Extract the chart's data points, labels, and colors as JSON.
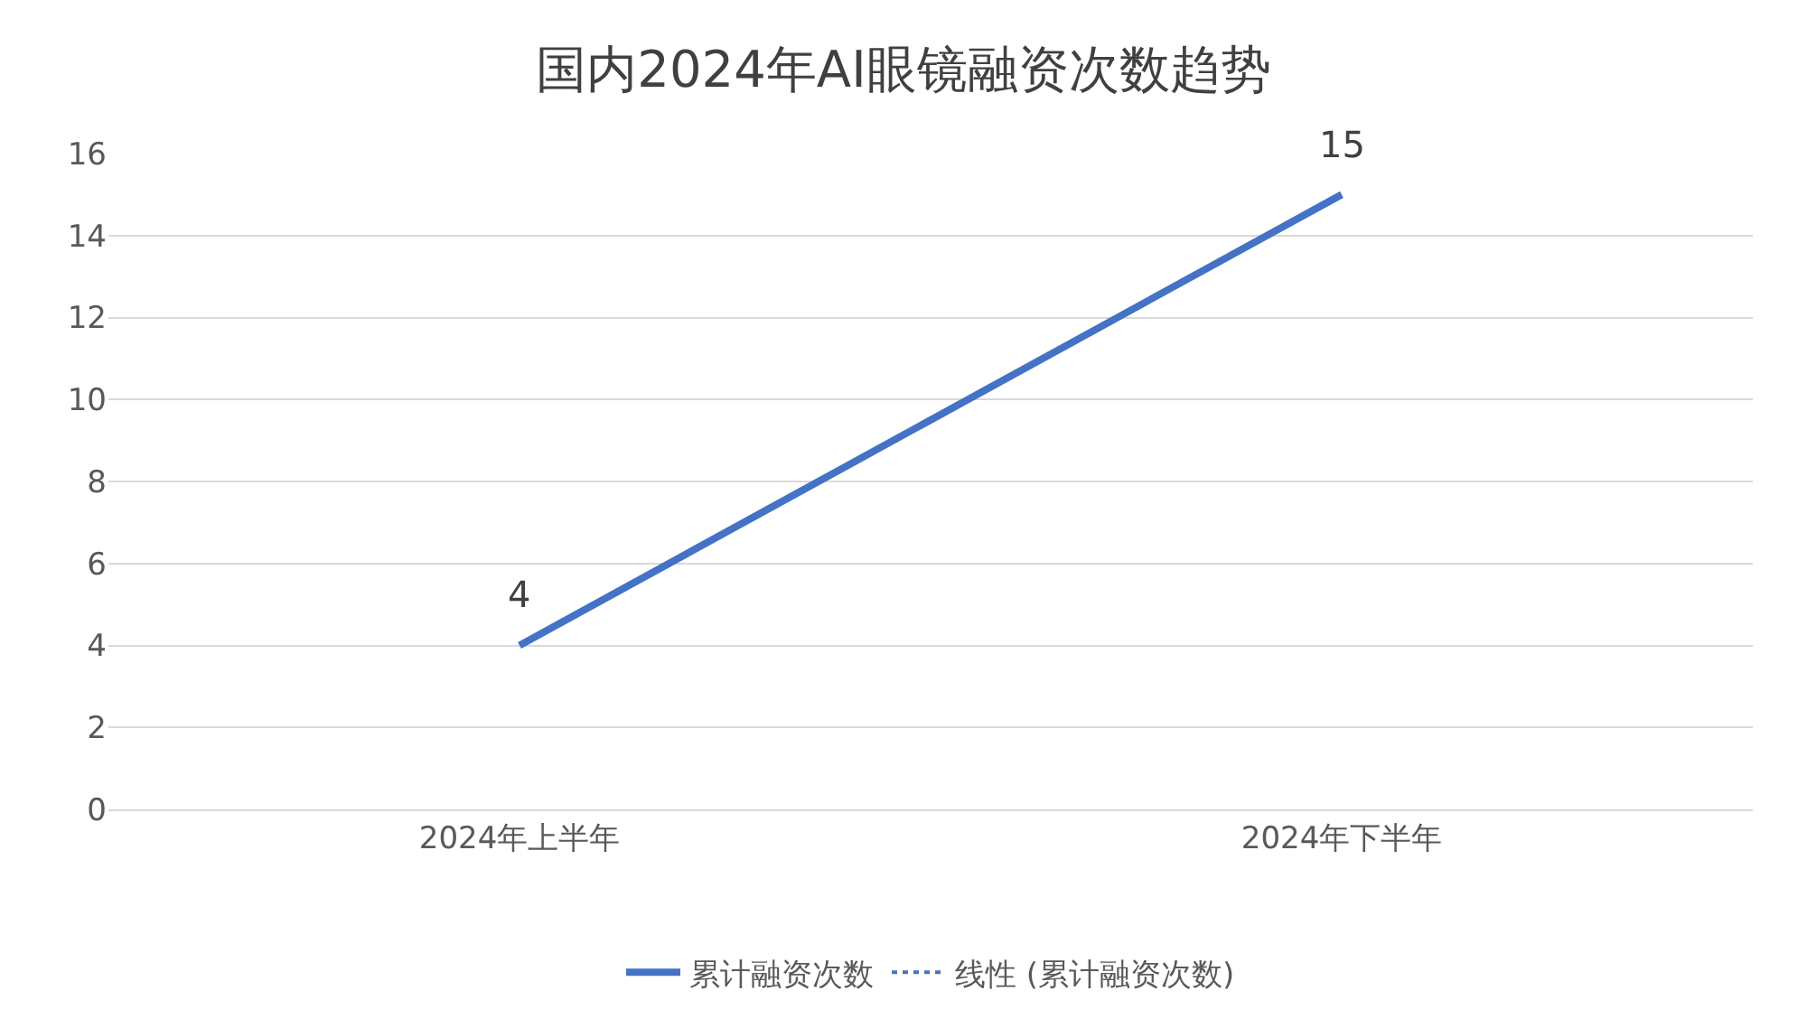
{
  "chart_data": {
    "type": "line",
    "title": "国内2024年AI眼镜融资次数趋势",
    "categories": [
      "2024年上半年",
      "2024年下半年"
    ],
    "series": [
      {
        "name": "累计融资次数",
        "color": "#4472c4",
        "values": [
          4,
          15
        ],
        "data_labels": true,
        "line_style": "solid"
      },
      {
        "name": "线性 (累计融资次数)",
        "color": "#4472c4",
        "values": [
          null,
          null
        ],
        "line_style": "dotted"
      }
    ],
    "ylim": [
      0,
      16
    ],
    "yticks": [
      0,
      2,
      4,
      6,
      8,
      10,
      12,
      14,
      16
    ],
    "grid": "y",
    "legend": "bottom",
    "marker": "none"
  }
}
